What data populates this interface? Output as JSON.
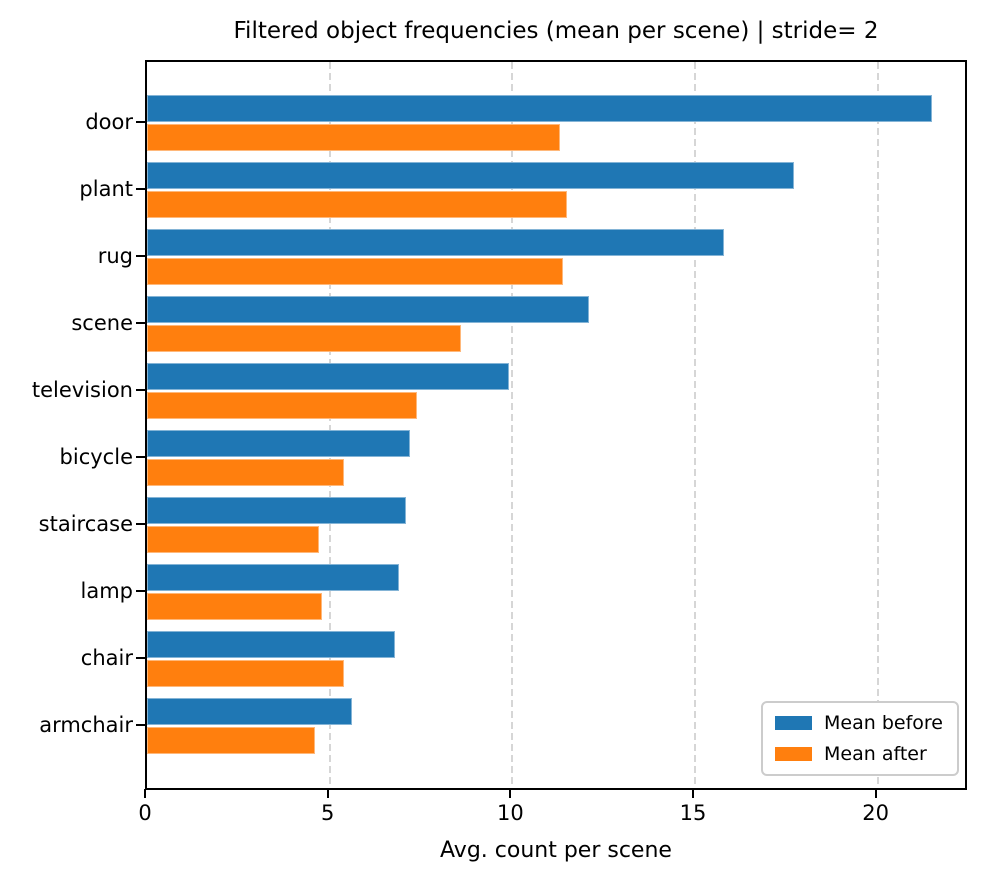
{
  "title": "Filtered object frequencies (mean per scene) | stride= 2",
  "chart_data": {
    "type": "bar",
    "orientation": "horizontal",
    "title": "Filtered object frequencies (mean per scene) | stride= 2",
    "xlabel": "Avg. count per scene",
    "ylabel": "",
    "categories": [
      "door",
      "plant",
      "rug",
      "scene",
      "television",
      "bicycle",
      "staircase",
      "lamp",
      "chair",
      "armchair"
    ],
    "series": [
      {
        "name": "Mean before",
        "color": "#1f77b4",
        "values": [
          21.5,
          17.7,
          15.8,
          12.1,
          9.9,
          7.2,
          7.1,
          6.9,
          6.8,
          5.6
        ]
      },
      {
        "name": "Mean after",
        "color": "#ff7f0e",
        "values": [
          11.3,
          11.5,
          11.4,
          8.6,
          7.4,
          5.4,
          4.7,
          4.8,
          5.4,
          4.6
        ]
      }
    ],
    "xlim": [
      0,
      22.5
    ],
    "xticks": [
      0,
      5,
      10,
      15,
      20
    ],
    "grid": "vertical-dashed",
    "grid_color": "#d6d6d6",
    "legend_position": "lower right"
  }
}
